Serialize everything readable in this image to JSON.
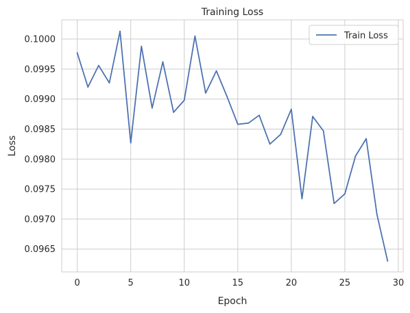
{
  "chart_data": {
    "type": "line",
    "title": "Training Loss",
    "xlabel": "Epoch",
    "ylabel": "Loss",
    "xlim": [
      -1.45,
      30.45
    ],
    "ylim": [
      0.09612,
      0.10032
    ],
    "xticks": [
      0,
      5,
      10,
      15,
      20,
      25,
      30
    ],
    "yticks": [
      0.0965,
      0.097,
      0.0975,
      0.098,
      0.0985,
      0.099,
      0.0995,
      0.1
    ],
    "ytick_labels": [
      "0.0965",
      "0.0970",
      "0.0975",
      "0.0980",
      "0.0985",
      "0.0990",
      "0.0995",
      "0.1000"
    ],
    "grid": true,
    "legend_position": "upper right",
    "series": [
      {
        "name": "Train Loss",
        "color": "#4c72b0",
        "x": [
          0,
          1,
          2,
          3,
          4,
          5,
          6,
          7,
          8,
          9,
          10,
          11,
          12,
          13,
          14,
          15,
          16,
          17,
          18,
          19,
          20,
          21,
          22,
          23,
          24,
          25,
          26,
          27,
          28,
          29
        ],
        "values": [
          0.09977,
          0.0992,
          0.09956,
          0.09927,
          0.10013,
          0.09827,
          0.09988,
          0.09885,
          0.09962,
          0.09878,
          0.09898,
          0.10005,
          0.0991,
          0.09947,
          0.09904,
          0.09858,
          0.0986,
          0.09873,
          0.09825,
          0.09841,
          0.09883,
          0.09734,
          0.09871,
          0.09847,
          0.09726,
          0.09742,
          0.09805,
          0.09834,
          0.09708,
          0.0963
        ]
      }
    ]
  }
}
